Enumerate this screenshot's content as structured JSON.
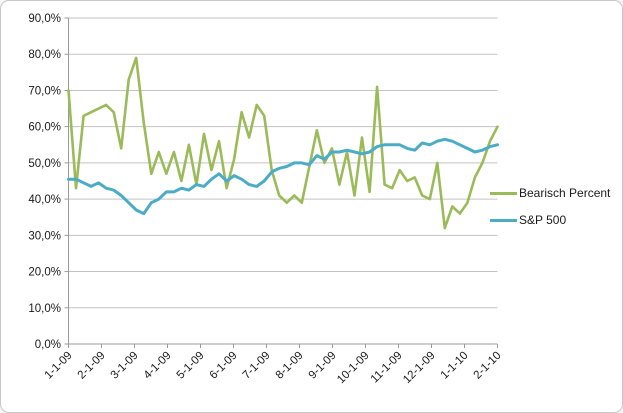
{
  "chart": {
    "background": "#ffffff",
    "frame_border_color": "#c8c8c8",
    "gridline_color": "#c3c3c3",
    "axis_line_color": "#9b9b9b",
    "tick_color": "#9b9b9b",
    "label_color": "#1a1a1a"
  },
  "legend": {
    "items": [
      {
        "label": "Bearisch Percent",
        "color": "#9bbb59"
      },
      {
        "label": "S&P 500",
        "color": "#4bacc6"
      }
    ]
  },
  "chart_data": {
    "type": "line",
    "title": "",
    "xlabel": "",
    "ylabel": "",
    "ylim": [
      0,
      90
    ],
    "y_tick_step": 10,
    "grid": true,
    "legend_position": "right",
    "y_tick_labels": [
      "0,0%",
      "10,0%",
      "20,0%",
      "30,0%",
      "40,0%",
      "50,0%",
      "60,0%",
      "70,0%",
      "80,0%",
      "90,0%"
    ],
    "x_tick_labels": [
      "1-1-09",
      "2-1-09",
      "3-1-09",
      "4-1-09",
      "5-1-09",
      "6-1-09",
      "7-1-09",
      "8-1-09",
      "9-1-09",
      "10-1-09",
      "11-1-09",
      "12-1-09",
      "1-1-10",
      "2-1-10"
    ],
    "series": [
      {
        "name": "Bearisch Percent",
        "color": "#9bbb59",
        "stroke_width": 2.6,
        "values": [
          70,
          43,
          63,
          64,
          65,
          66,
          64,
          54,
          73,
          79,
          61,
          47,
          53,
          47,
          53,
          45,
          55,
          44,
          58,
          48,
          56,
          43,
          51,
          64,
          57,
          66,
          63,
          48,
          41,
          39,
          41,
          39,
          49,
          59,
          50,
          54,
          44,
          53,
          41,
          57,
          42,
          71,
          44,
          43,
          48,
          45,
          46,
          41,
          40,
          50,
          32,
          38,
          36,
          39,
          46,
          50,
          56,
          60
        ]
      },
      {
        "name": "S&P 500",
        "color": "#4bacc6",
        "stroke_width": 3,
        "values": [
          45.5,
          45.5,
          44.5,
          43.5,
          44.5,
          43,
          42.5,
          41,
          39,
          37,
          36,
          39,
          40,
          42,
          42,
          43,
          42.5,
          44,
          43.5,
          45.5,
          47,
          45,
          46.5,
          45.5,
          44,
          43.5,
          45,
          47.5,
          48.5,
          49,
          50,
          50,
          49.5,
          52,
          51,
          53,
          53,
          53.5,
          53,
          52.5,
          53,
          54.5,
          55,
          55,
          55,
          54,
          53.5,
          55.5,
          55,
          56,
          56.5,
          56,
          55,
          54,
          53,
          53.5,
          54.5,
          55
        ]
      }
    ]
  }
}
